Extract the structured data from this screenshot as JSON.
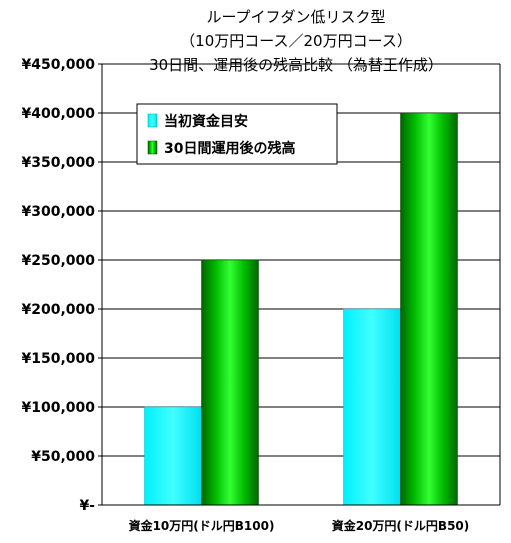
{
  "chart_data": {
    "type": "bar",
    "title_lines": [
      "ループイフダン低リスク型",
      "（10万円コース／20万円コース）",
      "30日間、運用後の残高比較 （為替王作成）"
    ],
    "categories": [
      "資金10万円(ドル円B100)",
      "資金20万円(ドル円B50)"
    ],
    "series": [
      {
        "name": "当初資金目安",
        "values": [
          100000,
          200000
        ],
        "color": "#00ffff"
      },
      {
        "name": "30日間運用後の残高",
        "values": [
          250000,
          400000
        ],
        "color": "#00cc00"
      }
    ],
    "ylim": [
      0,
      450000
    ],
    "yticks": [
      0,
      50000,
      100000,
      150000,
      200000,
      250000,
      300000,
      350000,
      400000,
      450000
    ],
    "ytick_labels": [
      "¥-",
      "¥50,000",
      "¥100,000",
      "¥150,000",
      "¥200,000",
      "¥250,000",
      "¥300,000",
      "¥350,000",
      "¥400,000",
      "¥450,000"
    ],
    "grid": true,
    "legend_position": "top-left"
  }
}
